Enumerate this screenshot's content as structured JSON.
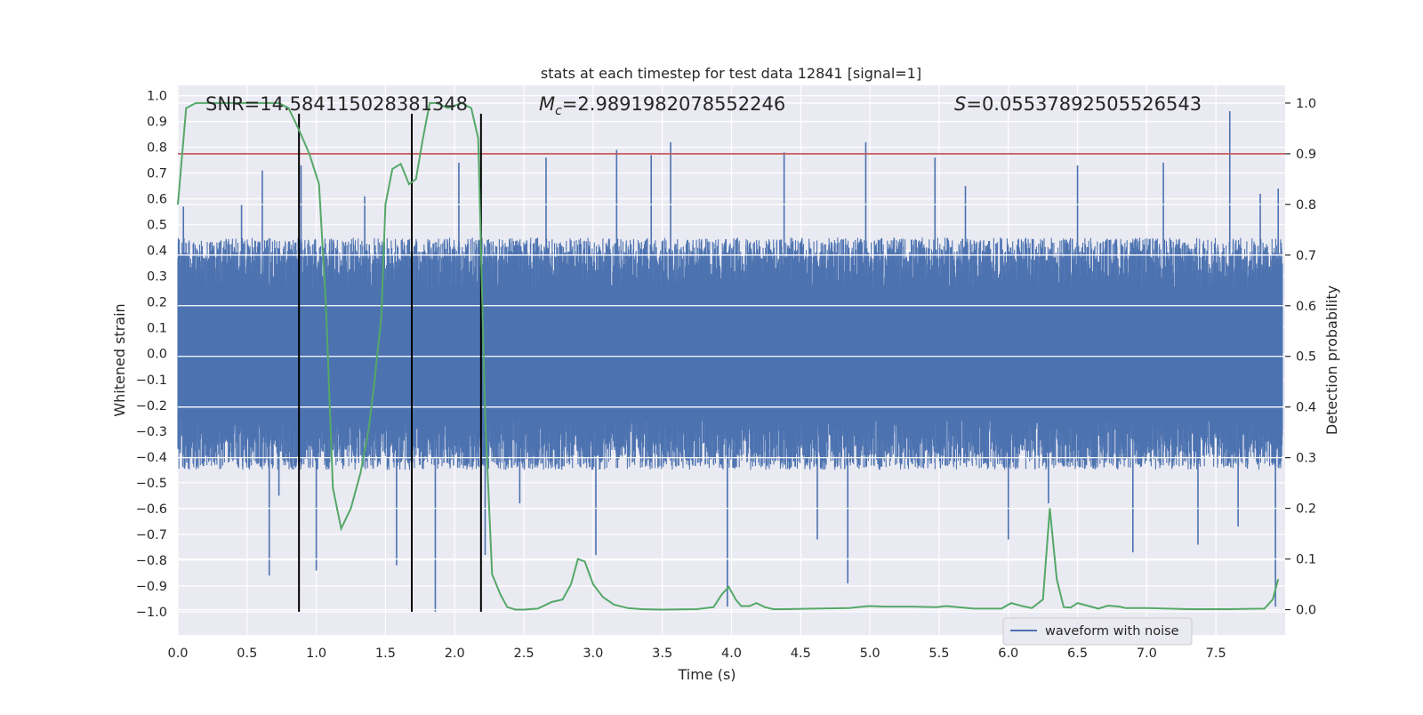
{
  "chart_data": {
    "type": "line",
    "title": "stats at each timestep for test data 12841 [signal=1]",
    "xlabel": "Time (s)",
    "ylabel": "Whitened strain",
    "ylabel_right": "Detection probability",
    "xlim": [
      0.0,
      8.0
    ],
    "ylim": [
      -1.09,
      1.04
    ],
    "ylim_right": [
      -0.05,
      1.035
    ],
    "x_ticks": [
      0.0,
      0.5,
      1.0,
      1.5,
      2.0,
      2.5,
      3.0,
      3.5,
      4.0,
      4.5,
      5.0,
      5.5,
      6.0,
      6.5,
      7.0,
      7.5
    ],
    "x_tick_labels": [
      "0.0",
      "0.5",
      "1.0",
      "1.5",
      "2.0",
      "2.5",
      "3.0",
      "3.5",
      "4.0",
      "4.5",
      "5.0",
      "5.5",
      "6.0",
      "6.5",
      "7.0",
      "7.5"
    ],
    "y_ticks": [
      1.0,
      0.9,
      0.8,
      0.7,
      0.6,
      0.5,
      0.4,
      0.3,
      0.2,
      0.1,
      0.0,
      -0.1,
      -0.2,
      -0.3,
      -0.4,
      -0.5,
      -0.6,
      -0.7,
      -0.8,
      -0.9,
      -1.0
    ],
    "y_tick_labels": [
      "1.0",
      "0.9",
      "0.8",
      "0.7",
      "0.6",
      "0.5",
      "0.4",
      "0.3",
      "0.2",
      "0.1",
      "0.0",
      "−0.1",
      "−0.2",
      "−0.3",
      "−0.4",
      "−0.5",
      "−0.6",
      "−0.7",
      "−0.8",
      "−0.9",
      "−1.0"
    ],
    "y_right_ticks": [
      1.0,
      0.9,
      0.8,
      0.7,
      0.6,
      0.5,
      0.4,
      0.3,
      0.2,
      0.1,
      0.0
    ],
    "y_right_tick_labels": [
      "1.0",
      "0.9",
      "0.8",
      "0.7",
      "0.6",
      "0.5",
      "0.4",
      "0.3",
      "0.2",
      "0.1",
      "0.0"
    ],
    "annotations": {
      "snr": "SNR=14.584115028381348",
      "mc_symbol": "M",
      "mc_sub": "c",
      "mc_value": "=2.9891982078552246",
      "s_symbol": "S",
      "s_value": "=0.05537892505526543"
    },
    "threshold": {
      "value": 0.9,
      "axis": "right",
      "color": "#c44e52"
    },
    "vertical_lines": [
      {
        "x": 0.875,
        "y_top": 0.93,
        "y_bottom": -1.0
      },
      {
        "x": 1.69,
        "y_top": 0.93,
        "y_bottom": -1.0
      },
      {
        "x": 2.19,
        "y_top": 0.93,
        "y_bottom": -1.0
      }
    ],
    "series": [
      {
        "name": "waveform with noise",
        "color": "#4c72b0",
        "in_legend": true,
        "description": "noisy whitened strain sampled densely over 0-8 s, amplitude mostly within ±0.5",
        "envelope_upper": 0.45,
        "envelope_lower": -0.45,
        "peaks": [
          {
            "x": 0.04,
            "y": 0.57
          },
          {
            "x": 0.46,
            "y": 0.58
          },
          {
            "x": 0.61,
            "y": 0.71
          },
          {
            "x": 0.66,
            "y": -0.86
          },
          {
            "x": 0.73,
            "y": -0.55
          },
          {
            "x": 0.89,
            "y": 0.73
          },
          {
            "x": 1.0,
            "y": -0.84
          },
          {
            "x": 1.35,
            "y": 0.61
          },
          {
            "x": 1.58,
            "y": -0.82
          },
          {
            "x": 1.86,
            "y": -1.0
          },
          {
            "x": 2.03,
            "y": 0.74
          },
          {
            "x": 2.22,
            "y": -0.78
          },
          {
            "x": 2.47,
            "y": -0.58
          },
          {
            "x": 2.66,
            "y": 0.76
          },
          {
            "x": 3.02,
            "y": -0.78
          },
          {
            "x": 3.17,
            "y": 0.79
          },
          {
            "x": 3.42,
            "y": 0.77
          },
          {
            "x": 3.56,
            "y": 0.82
          },
          {
            "x": 3.97,
            "y": -0.98
          },
          {
            "x": 4.38,
            "y": 0.78
          },
          {
            "x": 4.62,
            "y": -0.72
          },
          {
            "x": 4.84,
            "y": -0.89
          },
          {
            "x": 4.97,
            "y": 0.82
          },
          {
            "x": 5.47,
            "y": 0.76
          },
          {
            "x": 5.69,
            "y": 0.65
          },
          {
            "x": 6.0,
            "y": -0.72
          },
          {
            "x": 6.29,
            "y": -0.58
          },
          {
            "x": 6.5,
            "y": 0.73
          },
          {
            "x": 6.9,
            "y": -0.77
          },
          {
            "x": 7.12,
            "y": 0.74
          },
          {
            "x": 7.37,
            "y": -0.74
          },
          {
            "x": 7.6,
            "y": 0.94
          },
          {
            "x": 7.66,
            "y": -0.67
          },
          {
            "x": 7.82,
            "y": 0.62
          },
          {
            "x": 7.93,
            "y": -0.98
          },
          {
            "x": 7.95,
            "y": 0.64
          }
        ]
      },
      {
        "name": "detection probability",
        "color": "#55a868",
        "in_legend": false,
        "axis": "right",
        "x": [
          0.0,
          0.06,
          0.13,
          0.25,
          0.4,
          0.55,
          0.65,
          0.73,
          0.8,
          0.87,
          0.95,
          1.02,
          1.07,
          1.12,
          1.18,
          1.25,
          1.32,
          1.38,
          1.42,
          1.47,
          1.5,
          1.55,
          1.61,
          1.67,
          1.72,
          1.77,
          1.82,
          1.87,
          1.95,
          2.05,
          2.12,
          2.17,
          2.22,
          2.27,
          2.33,
          2.38,
          2.44,
          2.5,
          2.6,
          2.7,
          2.78,
          2.84,
          2.89,
          2.94,
          3.0,
          3.07,
          3.15,
          3.25,
          3.35,
          3.5,
          3.75,
          3.87,
          3.93,
          3.98,
          4.03,
          4.07,
          4.13,
          4.18,
          4.24,
          4.3,
          4.4,
          4.6,
          4.85,
          4.95,
          5.0,
          5.1,
          5.3,
          5.48,
          5.55,
          5.75,
          5.95,
          6.02,
          6.1,
          6.17,
          6.25,
          6.3,
          6.35,
          6.4,
          6.45,
          6.5,
          6.57,
          6.65,
          6.72,
          6.8,
          6.85,
          7.0,
          7.3,
          7.6,
          7.85,
          7.91,
          7.95
        ],
        "values": [
          0.8,
          0.99,
          1.0,
          1.0,
          1.0,
          1.0,
          1.0,
          1.0,
          0.99,
          0.95,
          0.9,
          0.84,
          0.6,
          0.24,
          0.16,
          0.2,
          0.27,
          0.36,
          0.45,
          0.58,
          0.8,
          0.87,
          0.88,
          0.84,
          0.85,
          0.93,
          1.0,
          1.0,
          0.99,
          1.0,
          0.99,
          0.93,
          0.38,
          0.07,
          0.03,
          0.005,
          0.0,
          0.0,
          0.002,
          0.015,
          0.02,
          0.05,
          0.1,
          0.095,
          0.05,
          0.025,
          0.01,
          0.003,
          0.001,
          0.0,
          0.001,
          0.005,
          0.03,
          0.045,
          0.02,
          0.007,
          0.007,
          0.013,
          0.005,
          0.001,
          0.001,
          0.002,
          0.003,
          0.006,
          0.007,
          0.006,
          0.006,
          0.005,
          0.007,
          0.002,
          0.002,
          0.013,
          0.007,
          0.003,
          0.02,
          0.2,
          0.06,
          0.005,
          0.004,
          0.013,
          0.008,
          0.002,
          0.008,
          0.006,
          0.003,
          0.003,
          0.001,
          0.001,
          0.002,
          0.02,
          0.06
        ]
      }
    ],
    "legend": {
      "placement": "lower-right",
      "entries": [
        "waveform with noise"
      ]
    }
  },
  "colors": {
    "background": "#eaeaf2",
    "grid": "#ffffff",
    "waveform": "#4c72b0",
    "probability": "#55a868",
    "threshold": "#c44e52",
    "markers": "#000000"
  }
}
